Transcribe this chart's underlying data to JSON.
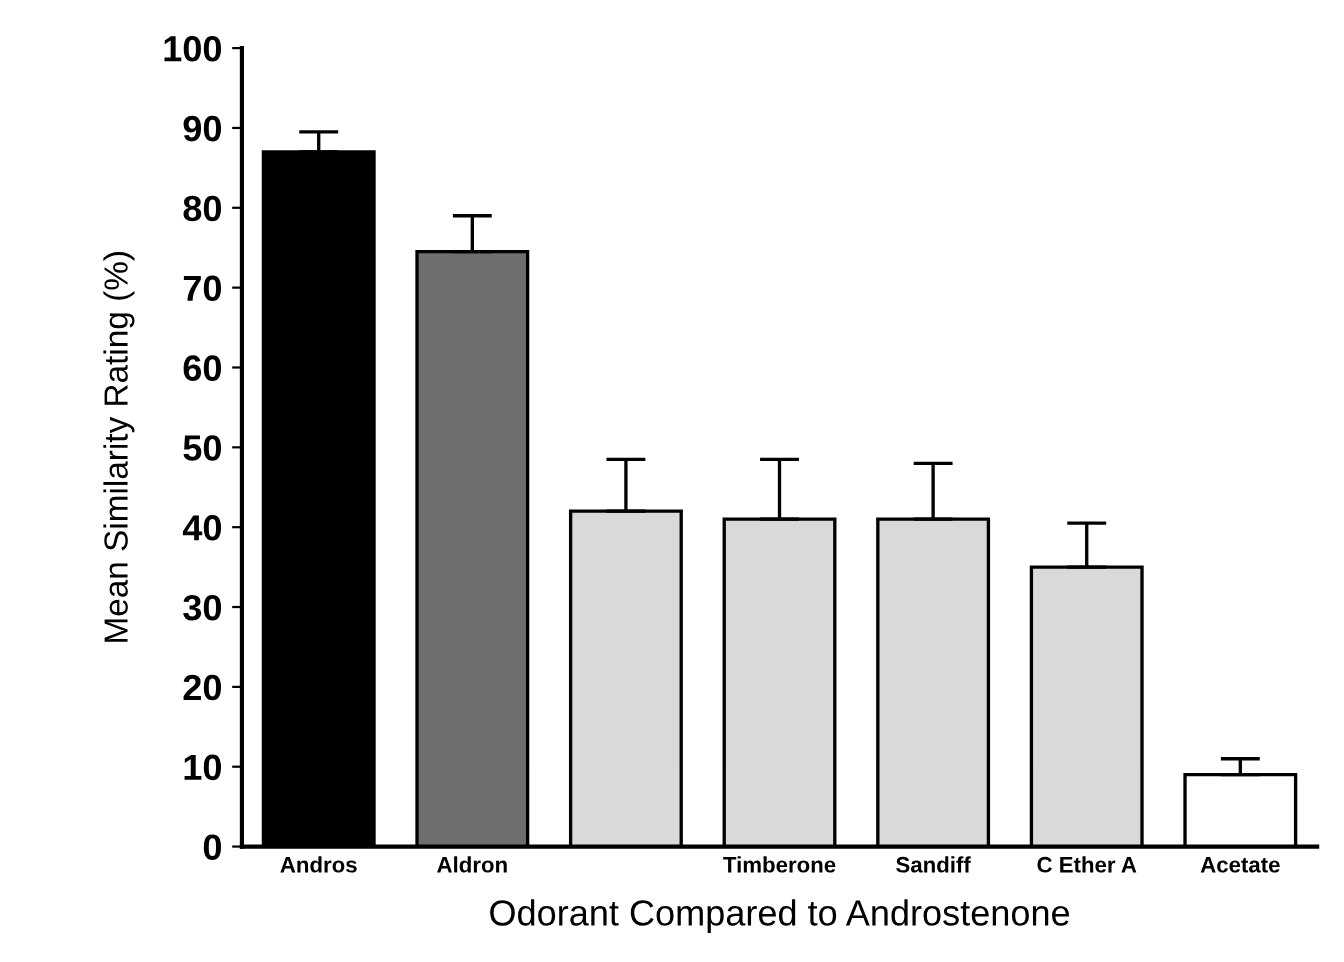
{
  "chart_data": {
    "type": "bar",
    "xlabel": "Odorant Compared to Androstenone",
    "ylabel": "Mean Similarity Rating (%)",
    "categories": [
      "Andros",
      "Aldron",
      null,
      "Timberone",
      "Sandiff",
      "C Ether A",
      "Acetate"
    ],
    "values": [
      87,
      74.5,
      42,
      41,
      41,
      35,
      9
    ],
    "colors": [
      "#000000",
      "#6e6e6e",
      "#d9d9d9",
      "#d9d9d9",
      "#d9d9d9",
      "#d9d9d9",
      "#ffffff"
    ],
    "errors": [
      [
        87,
        89.5
      ],
      [
        74.5,
        79
      ],
      [
        42,
        48.5
      ],
      [
        41,
        48.5
      ],
      [
        41,
        48
      ],
      [
        35,
        40.5
      ],
      [
        9,
        11
      ]
    ],
    "ylim": [
      0,
      100
    ],
    "yticks": [
      0,
      10,
      20,
      30,
      40,
      50,
      60,
      70,
      80,
      90,
      100
    ],
    "grid": false,
    "legend": false
  }
}
